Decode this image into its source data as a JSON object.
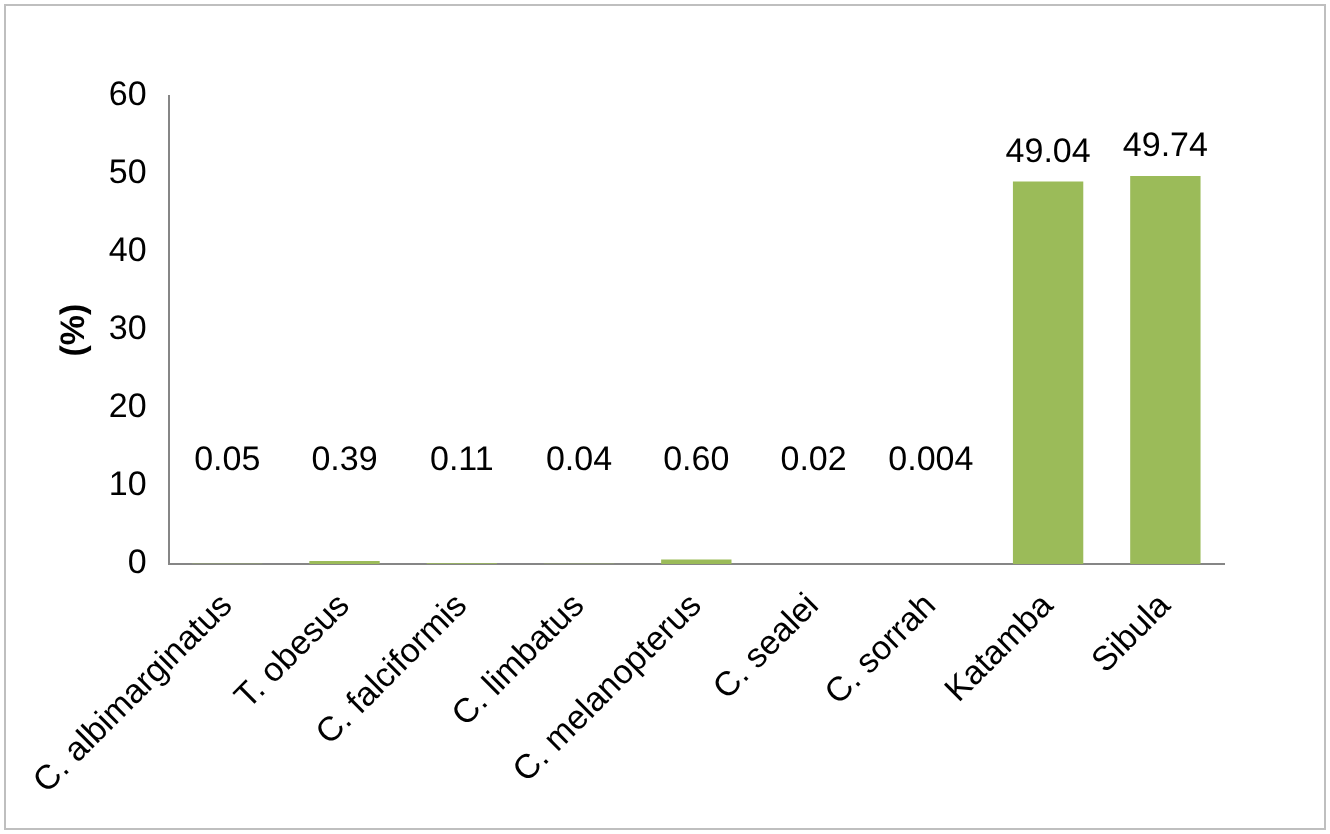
{
  "chart_data": {
    "type": "bar",
    "ylabel": "(%)",
    "categories": [
      "C. albimarginatus",
      "T. obesus",
      "C. falciformis",
      "C. limbatus",
      "C. melanopterus",
      "C. sealei",
      "C. sorrah",
      "Katamba",
      "Sibula"
    ],
    "values": [
      0.05,
      0.39,
      0.11,
      0.04,
      0.6,
      0.02,
      0.004,
      49.04,
      49.74
    ],
    "value_labels": [
      "0.05",
      "0.39",
      "0.11",
      "0.04",
      "0.60",
      "0.02",
      "0.004",
      "49.04",
      "49.74"
    ],
    "color": "#9bbb59",
    "ylim": [
      0,
      60
    ],
    "yticks": [
      0,
      10,
      20,
      30,
      40,
      50,
      60
    ],
    "grid": false,
    "legend": false
  }
}
